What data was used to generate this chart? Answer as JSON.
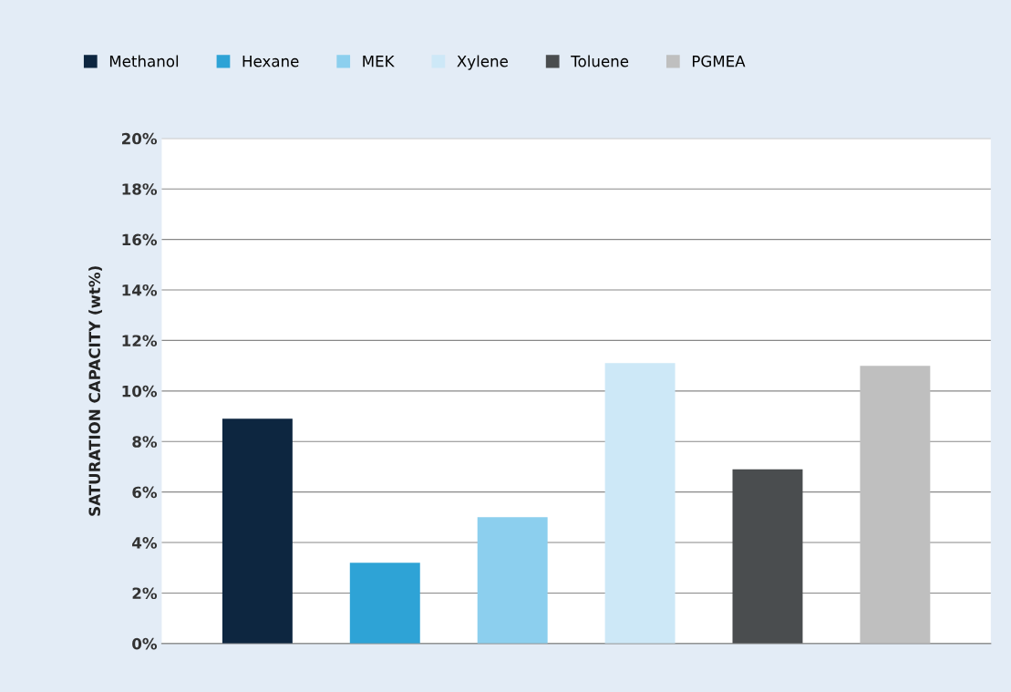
{
  "chart_data": {
    "type": "bar",
    "ylabel": "SATURATION CAPACITY (wt%)",
    "categories": [
      null,
      null,
      null,
      null,
      null,
      null
    ],
    "series": [
      {
        "name": "Methanol",
        "color": "#0d2640",
        "values": [
          8.9,
          null,
          null,
          null,
          null,
          null
        ]
      },
      {
        "name": "Hexane",
        "color": "#2ea3d6",
        "values": [
          null,
          3.2,
          null,
          null,
          null,
          null
        ]
      },
      {
        "name": "MEK",
        "color": "#8ccfee",
        "values": [
          null,
          null,
          5.0,
          null,
          null,
          null
        ]
      },
      {
        "name": "Xylene",
        "color": "#cde8f7",
        "values": [
          null,
          null,
          null,
          11.1,
          null,
          null
        ]
      },
      {
        "name": "Toluene",
        "color": "#4a4d4f",
        "values": [
          null,
          null,
          null,
          null,
          6.9,
          null
        ]
      },
      {
        "name": "PGMEA",
        "color": "#bfbfbf",
        "values": [
          null,
          null,
          null,
          null,
          null,
          11.0
        ]
      }
    ],
    "ylim": [
      0,
      20
    ],
    "yticks": [
      {
        "value": 0,
        "label": "0%"
      },
      {
        "value": 2,
        "label": "2%"
      },
      {
        "value": 4,
        "label": "4%"
      },
      {
        "value": 6,
        "label": "6%"
      },
      {
        "value": 8,
        "label": "8%"
      },
      {
        "value": 10,
        "label": "10%"
      },
      {
        "value": 12,
        "label": "12%"
      },
      {
        "value": 14,
        "label": "14%"
      },
      {
        "value": 16,
        "label": "16%"
      },
      {
        "value": 18,
        "label": "18%"
      },
      {
        "value": 20,
        "label": "20%"
      }
    ],
    "grid": "y",
    "legend": "top left",
    "tick_labels": "y"
  }
}
